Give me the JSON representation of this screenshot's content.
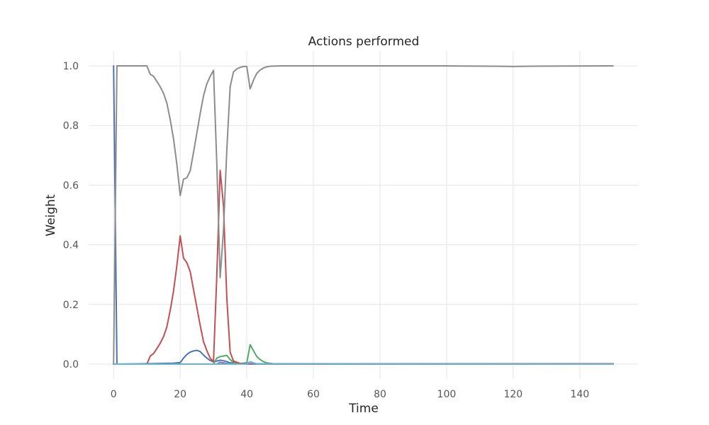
{
  "chart_data": {
    "type": "line",
    "title": "Actions performed",
    "xlabel": "Time",
    "ylabel": "Weight",
    "xlim": [
      -7.5,
      157.5
    ],
    "ylim": [
      -0.05,
      1.05
    ],
    "xticks": [
      0,
      20,
      40,
      60,
      80,
      100,
      120,
      140
    ],
    "yticks": [
      0.0,
      0.2,
      0.4,
      0.6,
      0.8,
      1.0
    ],
    "grid": true,
    "series": [
      {
        "color": "#4c72b0",
        "points": [
          [
            0,
            1.0
          ],
          [
            1,
            0.0
          ],
          [
            10,
            0.001
          ],
          [
            18,
            0.003
          ],
          [
            20,
            0.005
          ],
          [
            21,
            0.02
          ],
          [
            22,
            0.032
          ],
          [
            23,
            0.04
          ],
          [
            24,
            0.044
          ],
          [
            25,
            0.046
          ],
          [
            26,
            0.042
          ],
          [
            27,
            0.03
          ],
          [
            28,
            0.02
          ],
          [
            29,
            0.012
          ],
          [
            30,
            0.007
          ],
          [
            31,
            0.01
          ],
          [
            32,
            0.013
          ],
          [
            33,
            0.011
          ],
          [
            34,
            0.008
          ],
          [
            35,
            0.004
          ],
          [
            37,
            0.002
          ],
          [
            40,
            0.001
          ],
          [
            150,
            0.001
          ]
        ]
      },
      {
        "color": "#55a868",
        "points": [
          [
            0,
            0.0
          ],
          [
            30,
            0.0
          ],
          [
            31,
            0.02
          ],
          [
            32,
            0.025
          ],
          [
            33,
            0.027
          ],
          [
            34,
            0.029
          ],
          [
            35,
            0.015
          ],
          [
            36,
            0.005
          ],
          [
            38,
            0.002
          ],
          [
            40,
            0.004
          ],
          [
            41,
            0.065
          ],
          [
            42,
            0.045
          ],
          [
            43,
            0.025
          ],
          [
            44,
            0.015
          ],
          [
            45,
            0.008
          ],
          [
            46,
            0.004
          ],
          [
            48,
            0.001
          ],
          [
            150,
            0.0
          ]
        ]
      },
      {
        "color": "#c44e52",
        "points": [
          [
            0,
            0.0
          ],
          [
            10,
            0.0
          ],
          [
            11,
            0.027
          ],
          [
            12,
            0.035
          ],
          [
            13,
            0.052
          ],
          [
            14,
            0.07
          ],
          [
            15,
            0.092
          ],
          [
            16,
            0.125
          ],
          [
            17,
            0.18
          ],
          [
            18,
            0.245
          ],
          [
            19,
            0.33
          ],
          [
            20,
            0.43
          ],
          [
            21,
            0.355
          ],
          [
            22,
            0.34
          ],
          [
            23,
            0.31
          ],
          [
            24,
            0.25
          ],
          [
            25,
            0.19
          ],
          [
            26,
            0.13
          ],
          [
            27,
            0.075
          ],
          [
            28,
            0.045
          ],
          [
            29,
            0.02
          ],
          [
            30,
            0.008
          ],
          [
            31,
            0.3
          ],
          [
            32,
            0.65
          ],
          [
            33,
            0.53
          ],
          [
            34,
            0.22
          ],
          [
            35,
            0.04
          ],
          [
            36,
            0.01
          ],
          [
            38,
            0.002
          ],
          [
            40,
            0.001
          ],
          [
            150,
            0.001
          ]
        ]
      },
      {
        "color": "#8172b2",
        "points": [
          [
            0,
            0.0
          ],
          [
            31,
            0.0
          ],
          [
            32,
            0.006
          ],
          [
            33,
            0.004
          ],
          [
            34,
            0.002
          ],
          [
            35,
            0.0
          ],
          [
            150,
            0.0
          ]
        ]
      },
      {
        "color": "#64b5cd",
        "points": [
          [
            0,
            0.0
          ],
          [
            40,
            0.0
          ],
          [
            41,
            0.008
          ],
          [
            42,
            0.004
          ],
          [
            43,
            0.001
          ],
          [
            150,
            0.0
          ]
        ]
      },
      {
        "color": "#8c8c8c",
        "points": [
          [
            0,
            0.0
          ],
          [
            1,
            1.0
          ],
          [
            10,
            1.0
          ],
          [
            11,
            0.972
          ],
          [
            12,
            0.965
          ],
          [
            13,
            0.948
          ],
          [
            14,
            0.93
          ],
          [
            15,
            0.908
          ],
          [
            16,
            0.875
          ],
          [
            17,
            0.82
          ],
          [
            18,
            0.755
          ],
          [
            19,
            0.67
          ],
          [
            20,
            0.565
          ],
          [
            21,
            0.62
          ],
          [
            22,
            0.625
          ],
          [
            23,
            0.648
          ],
          [
            24,
            0.71
          ],
          [
            25,
            0.775
          ],
          [
            26,
            0.84
          ],
          [
            27,
            0.9
          ],
          [
            28,
            0.94
          ],
          [
            29,
            0.965
          ],
          [
            30,
            0.985
          ],
          [
            31,
            0.67
          ],
          [
            32,
            0.29
          ],
          [
            33,
            0.45
          ],
          [
            34,
            0.72
          ],
          [
            35,
            0.93
          ],
          [
            36,
            0.98
          ],
          [
            37,
            0.99
          ],
          [
            38,
            0.995
          ],
          [
            39,
            0.998
          ],
          [
            40,
            0.998
          ],
          [
            41,
            0.923
          ],
          [
            42,
            0.952
          ],
          [
            43,
            0.975
          ],
          [
            44,
            0.986
          ],
          [
            45,
            0.993
          ],
          [
            46,
            0.997
          ],
          [
            47,
            0.999
          ],
          [
            50,
            1.0
          ],
          [
            100,
            1.0
          ],
          [
            115,
            0.999
          ],
          [
            120,
            0.998
          ],
          [
            125,
            0.999
          ],
          [
            150,
            1.0
          ]
        ]
      }
    ]
  }
}
